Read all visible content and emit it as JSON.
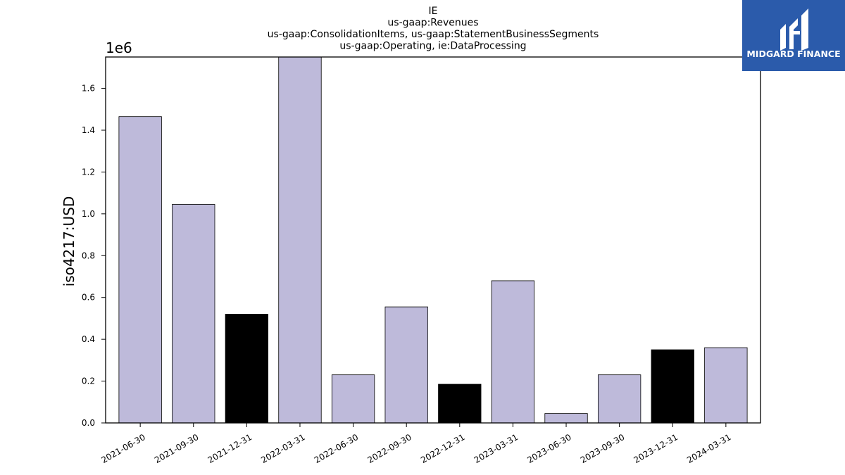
{
  "chart_data": {
    "type": "bar",
    "title_lines": [
      "IE",
      "us-gaap:Revenues",
      "us-gaap:ConsolidationItems, us-gaap:StatementBusinessSegments",
      "us-gaap:Operating, ie:DataProcessing"
    ],
    "xlabel": "",
    "ylabel": "iso4217:USD",
    "y_offset_label": "1e6",
    "ylim": [
      0,
      1.75
    ],
    "y_ticks": [
      0.0,
      0.2,
      0.4,
      0.6,
      0.8,
      1.0,
      1.2,
      1.4,
      1.6
    ],
    "y_tick_labels": [
      "0.0",
      "0.2",
      "0.4",
      "0.6",
      "0.8",
      "1.0",
      "1.2",
      "1.4",
      "1.6"
    ],
    "categories": [
      "2021-06-30",
      "2021-09-30",
      "2021-12-31",
      "2022-03-31",
      "2022-06-30",
      "2022-09-30",
      "2022-12-31",
      "2023-03-31",
      "2023-06-30",
      "2023-09-30",
      "2023-12-31",
      "2024-03-31"
    ],
    "values": [
      1.465,
      1.045,
      0.52,
      1.75,
      0.23,
      0.555,
      0.185,
      0.68,
      0.045,
      0.23,
      0.35,
      0.36
    ],
    "bar_colors": [
      "#bebada",
      "#bebada",
      "#000000",
      "#bebada",
      "#bebada",
      "#bebada",
      "#000000",
      "#bebada",
      "#bebada",
      "#bebada",
      "#000000",
      "#bebada"
    ],
    "grid": false,
    "legend": "none"
  },
  "logo": {
    "text": "MIDGARD FINANCE",
    "background": "#2b5bab"
  }
}
